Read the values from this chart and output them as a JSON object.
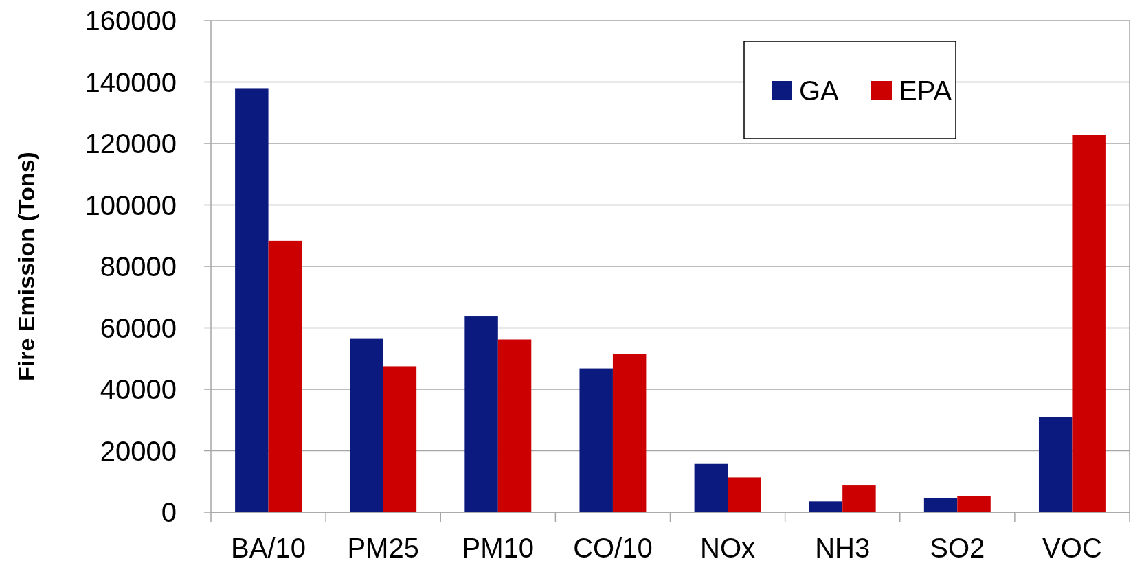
{
  "chart_data": {
    "type": "bar",
    "ylabel": "Fire Emission (Tons)",
    "categories": [
      "BA/10",
      "PM25",
      "PM10",
      "CO/10",
      "NOx",
      "NH3",
      "SO2",
      "VOC"
    ],
    "series": [
      {
        "name": "GA",
        "color": "#0b1a7e",
        "values": [
          138000,
          56400,
          63900,
          46800,
          15700,
          3500,
          4500,
          31000
        ]
      },
      {
        "name": "EPA",
        "color": "#cc0000",
        "values": [
          88300,
          47500,
          56200,
          51500,
          11300,
          8700,
          5200,
          122700
        ]
      }
    ],
    "ylim": [
      0,
      160000
    ],
    "yticks": [
      0,
      20000,
      40000,
      60000,
      80000,
      100000,
      120000,
      140000,
      160000
    ],
    "grid": "y",
    "legend": "top right"
  }
}
